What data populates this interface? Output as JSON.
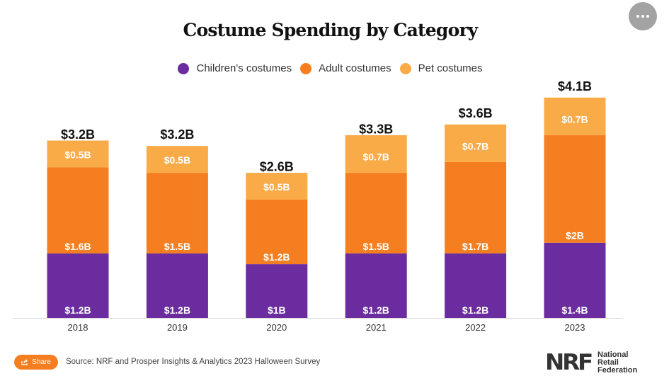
{
  "page": {
    "more_button_icon": "ellipsis-icon",
    "share_label": "Share",
    "share_icon": "share-icon",
    "source": "Source: NRF and Prosper Insights & Analytics 2023 Halloween Survey",
    "logo": {
      "mark": "NRF",
      "line1": "National",
      "line2": "Retail",
      "line3": "Federation"
    }
  },
  "chart_data": {
    "type": "bar",
    "stacked": true,
    "title": "Costume Spending by Category",
    "xlabel": "",
    "ylabel": "",
    "ylim": [
      0,
      4.1
    ],
    "grid": false,
    "legend_position": "top-center",
    "unit": "USD billions",
    "categories": [
      "2018",
      "2019",
      "2020",
      "2021",
      "2022",
      "2023"
    ],
    "series": [
      {
        "name": "Children's costumes",
        "color": "#6a2c9e",
        "values": [
          1.2,
          1.2,
          1.0,
          1.2,
          1.2,
          1.4
        ],
        "labels": [
          "$1.2B",
          "$1.2B",
          "$1B",
          "$1.2B",
          "$1.2B",
          "$1.4B"
        ]
      },
      {
        "name": "Adult costumes",
        "color": "#f57f20",
        "values": [
          1.6,
          1.5,
          1.2,
          1.5,
          1.7,
          2.0
        ],
        "labels": [
          "$1.6B",
          "$1.5B",
          "$1.2B",
          "$1.5B",
          "$1.7B",
          "$2B"
        ]
      },
      {
        "name": "Pet costumes",
        "color": "#f9ab47",
        "values": [
          0.5,
          0.5,
          0.5,
          0.7,
          0.7,
          0.7
        ],
        "labels": [
          "$0.5B",
          "$0.5B",
          "$0.5B",
          "$0.7B",
          "$0.7B",
          "$0.7B"
        ]
      }
    ],
    "totals": [
      3.2,
      3.2,
      2.6,
      3.3,
      3.6,
      4.1
    ],
    "total_labels": [
      "$3.2B",
      "$3.2B",
      "$2.6B",
      "$3.3B",
      "$3.6B",
      "$4.1B"
    ]
  }
}
